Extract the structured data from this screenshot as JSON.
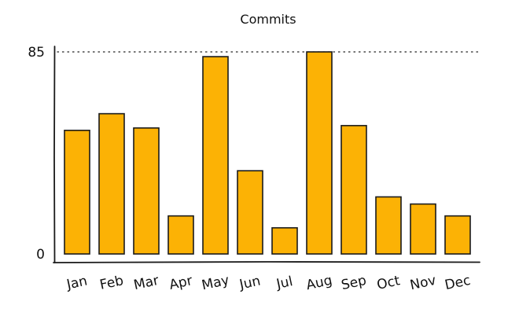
{
  "chart_data": {
    "type": "bar",
    "title": "Commits",
    "xlabel": "",
    "ylabel": "",
    "categories": [
      "Jan",
      "Feb",
      "Mar",
      "Apr",
      "May",
      "Jun",
      "Jul",
      "Aug",
      "Sep",
      "Oct",
      "Nov",
      "Dec"
    ],
    "values": [
      52,
      59,
      53,
      16,
      83,
      35,
      11,
      85,
      54,
      24,
      21,
      16
    ],
    "ylim": [
      0,
      85
    ],
    "yticks": [
      "0",
      "85"
    ],
    "reference_line": {
      "value": 85,
      "style": "dotted"
    },
    "grid": false,
    "legend": "none",
    "colors": {
      "bar_fill": "#FCB205",
      "bar_stroke": "#1a1a1a",
      "axis": "#1a1a1a",
      "text": "#111111"
    }
  }
}
